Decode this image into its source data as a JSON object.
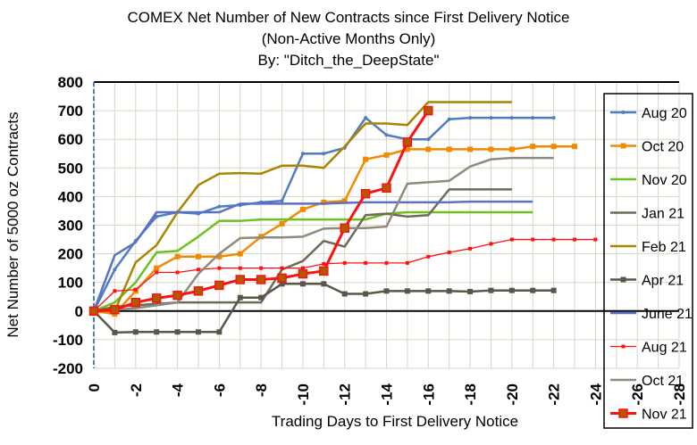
{
  "chart_data": {
    "type": "line",
    "title": [
      "COMEX Net Number of New Contracts since First Delivery Notice",
      "(Non-Active Months Only)",
      "By:  \"Ditch_the_DeepState\""
    ],
    "xlabel": "Trading Days to First Delivery Notice",
    "ylabel": "Net Number of 5000 oz Contracts",
    "xlim": [
      0,
      -28
    ],
    "ylim": [
      -200,
      800
    ],
    "xticks": [
      "0",
      "-2",
      "-4",
      "-6",
      "-8",
      "-10",
      "-12",
      "-14",
      "-16",
      "-18",
      "-20",
      "-22",
      "-24",
      "-26",
      "-28"
    ],
    "yticks": [
      "800",
      "700",
      "600",
      "500",
      "400",
      "300",
      "200",
      "100",
      "0",
      "-100",
      "-200"
    ],
    "grid": true,
    "legend_position": "right",
    "series": [
      {
        "name": "Aug 20",
        "color": "#4f7ebf",
        "marker": "dot",
        "width": 2.5,
        "values": [
          0,
          145,
          245,
          330,
          345,
          340,
          365,
          370,
          380,
          385,
          550,
          550,
          570,
          675,
          615,
          600,
          600,
          670,
          675,
          675,
          675,
          675,
          675
        ]
      },
      {
        "name": "Oct 20",
        "color": "#f08a00",
        "marker": "square",
        "width": 2.5,
        "values": [
          0,
          -10,
          70,
          150,
          190,
          190,
          190,
          200,
          260,
          305,
          355,
          380,
          385,
          530,
          545,
          565,
          565,
          565,
          565,
          565,
          565,
          575,
          575,
          575
        ]
      },
      {
        "name": "Nov 20",
        "color": "#70c020",
        "marker": "none",
        "width": 2.5,
        "values": [
          0,
          30,
          100,
          205,
          210,
          260,
          315,
          315,
          320,
          320,
          320,
          320,
          320,
          320,
          340,
          345,
          345,
          345,
          345,
          345,
          345,
          345
        ]
      },
      {
        "name": "Jan 21",
        "color": "#6e6a58",
        "marker": "none",
        "width": 2.5,
        "values": [
          0,
          15,
          20,
          25,
          30,
          30,
          30,
          30,
          30,
          145,
          175,
          245,
          225,
          335,
          340,
          330,
          335,
          425,
          425,
          425,
          425
        ]
      },
      {
        "name": "Feb 21",
        "color": "#a88600",
        "marker": "none",
        "width": 2.5,
        "values": [
          0,
          0,
          170,
          230,
          345,
          440,
          480,
          482,
          480,
          508,
          508,
          500,
          575,
          655,
          655,
          650,
          730,
          730,
          730,
          730,
          730
        ]
      },
      {
        "name": "Apr 21",
        "color": "#5a564a",
        "marker": "square",
        "width": 2.5,
        "values": [
          0,
          -75,
          -73,
          -73,
          -73,
          -73,
          -73,
          47,
          47,
          95,
          95,
          95,
          60,
          60,
          70,
          70,
          70,
          70,
          68,
          72,
          72,
          72,
          72
        ]
      },
      {
        "name": "June 21",
        "color": "#5a6fc8",
        "marker": "none",
        "width": 2.5,
        "values": [
          0,
          195,
          240,
          345,
          345,
          345,
          345,
          375,
          375,
          375,
          375,
          375,
          378,
          380,
          380,
          380,
          380,
          380,
          382,
          382,
          382,
          382
        ]
      },
      {
        "name": "Aug 21",
        "color": "#ff1010",
        "marker": "square-small",
        "width": 1.3,
        "values": [
          0,
          70,
          75,
          135,
          135,
          145,
          150,
          150,
          150,
          150,
          150,
          165,
          168,
          168,
          168,
          168,
          190,
          205,
          218,
          235,
          250,
          250,
          250,
          250,
          250
        ]
      },
      {
        "name": "Oct 21",
        "color": "#8e8a7c",
        "marker": "none",
        "width": 2.5,
        "values": [
          0,
          5,
          10,
          20,
          30,
          130,
          200,
          255,
          257,
          257,
          260,
          288,
          290,
          290,
          295,
          445,
          450,
          455,
          505,
          530,
          535,
          535,
          535
        ]
      },
      {
        "name": "Nov 21",
        "color": "#ff1010",
        "marker": "square-big",
        "width": 3,
        "values": [
          0,
          5,
          30,
          45,
          55,
          70,
          90,
          110,
          110,
          115,
          130,
          140,
          290,
          410,
          430,
          590,
          700
        ]
      }
    ]
  }
}
